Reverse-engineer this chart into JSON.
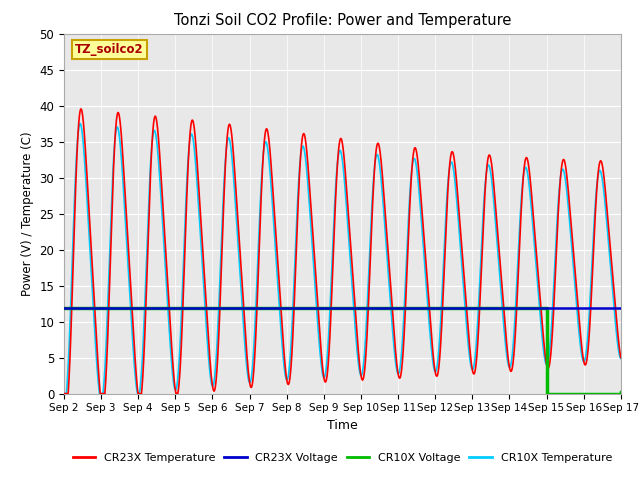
{
  "title": "Tonzi Soil CO2 Profile: Power and Temperature",
  "xlabel": "Time",
  "ylabel": "Power (V) / Temperature (C)",
  "ylim": [
    0,
    50
  ],
  "xlim": [
    0,
    15
  ],
  "plot_bg": "#e8e8e8",
  "annotation_text": "TZ_soilco2",
  "annotation_bg": "#ffff99",
  "annotation_border": "#c8a000",
  "xtick_labels": [
    "Sep 2",
    "Sep 3",
    "Sep 4",
    "Sep 5",
    "Sep 6",
    "Sep 7",
    "Sep 8",
    "Sep 9",
    "Sep 10",
    "Sep 11",
    "Sep 12",
    "Sep 13",
    "Sep 14",
    "Sep 15",
    "Sep 16",
    "Sep 17"
  ],
  "ytick_vals": [
    0,
    5,
    10,
    15,
    20,
    25,
    30,
    35,
    40,
    45,
    50
  ],
  "cr23x_temp_color": "#ff0000",
  "cr23x_volt_color": "#0000cc",
  "cr10x_volt_color": "#00bb00",
  "cr10x_temp_color": "#00ccff",
  "cr23x_volt_value": 11.9,
  "cr10x_volt_flat": 11.85,
  "legend_labels": [
    "CR23X Temperature",
    "CR23X Voltage",
    "CR10X Voltage",
    "CR10X Temperature"
  ]
}
